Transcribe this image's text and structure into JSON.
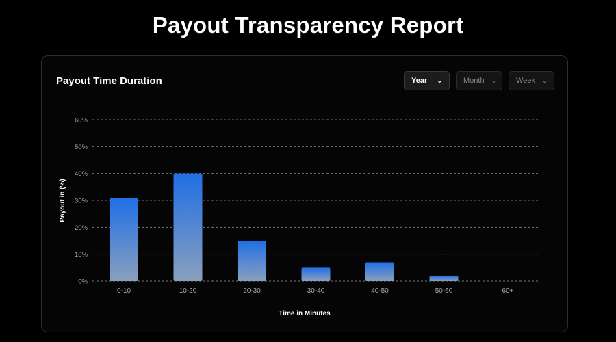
{
  "page_title": "Payout Transparency Report",
  "card": {
    "title": "Payout Time Duration",
    "filters": [
      {
        "label": "Year",
        "active": true
      },
      {
        "label": "Month",
        "active": false
      },
      {
        "label": "Week",
        "active": false
      }
    ]
  },
  "chart_data": {
    "type": "bar",
    "title": "Payout Time Duration",
    "categories": [
      "0-10",
      "10-20",
      "20-30",
      "30-40",
      "40-50",
      "50-60",
      "60+"
    ],
    "values": [
      31,
      40,
      15,
      5,
      7,
      2,
      0
    ],
    "xlabel": "Time in Minutes",
    "ylabel": "Payout in (%)",
    "ylim": [
      0,
      60
    ],
    "yticks": [
      "0%",
      "10%",
      "20%",
      "30%",
      "40%",
      "50%",
      "60%"
    ],
    "grid": true,
    "colors": {
      "top": "#1f6fe5",
      "bottom": "#8aa0bd"
    }
  }
}
